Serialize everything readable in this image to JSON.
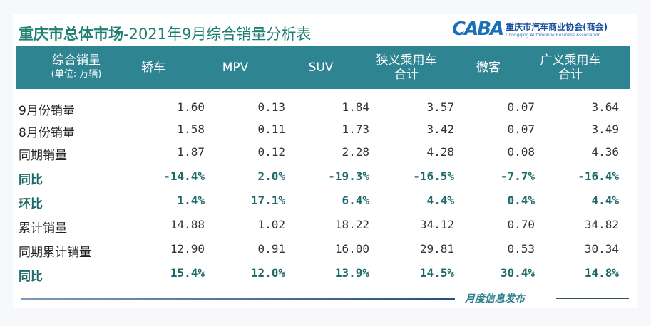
{
  "title": {
    "bold": "重庆市总体市场",
    "rest": "-2021年9月综合销量分析表"
  },
  "logo": {
    "mark": "CABA",
    "cn": "重庆市汽车商业协会(商会)",
    "en": "Chongqing Automobile Business Association"
  },
  "header": {
    "label": "综合销量",
    "unit": "(单位: 万辆)",
    "columns": [
      [
        "轿车"
      ],
      [
        "MPV"
      ],
      [
        "SUV"
      ],
      [
        "狭义乘用车",
        "合计"
      ],
      [
        "微客"
      ],
      [
        "广义乘用车",
        "合计"
      ]
    ]
  },
  "rows": [
    {
      "label": "9月份销量",
      "values": [
        "1.60",
        "0.13",
        "1.84",
        "3.57",
        "0.07",
        "3.64"
      ],
      "highlight": false
    },
    {
      "label": "8月份销量",
      "values": [
        "1.58",
        "0.11",
        "1.73",
        "3.42",
        "0.07",
        "3.49"
      ],
      "highlight": false
    },
    {
      "label": "同期销量",
      "values": [
        "1.87",
        "0.12",
        "2.28",
        "4.28",
        "0.08",
        "4.36"
      ],
      "highlight": false
    },
    {
      "label": "同比",
      "values": [
        "-14.4%",
        "2.0%",
        "-19.3%",
        "-16.5%",
        "-7.7%",
        "-16.4%"
      ],
      "highlight": true
    },
    {
      "label": "环比",
      "values": [
        "1.4%",
        "17.1%",
        "6.4%",
        "4.4%",
        "0.4%",
        "4.4%"
      ],
      "highlight": true
    },
    {
      "label": "累计销量",
      "values": [
        "14.88",
        "1.02",
        "18.22",
        "34.12",
        "0.70",
        "34.82"
      ],
      "highlight": false
    },
    {
      "label": "同期累计销量",
      "values": [
        "12.90",
        "0.91",
        "16.00",
        "29.81",
        "0.53",
        "30.34"
      ],
      "highlight": false
    },
    {
      "label": "同比",
      "values": [
        "15.4%",
        "12.0%",
        "13.9%",
        "14.5%",
        "30.4%",
        "14.8%"
      ],
      "highlight": true
    }
  ],
  "footer": "月度信息发布",
  "colors": {
    "header_bg": "#2f8492",
    "title": "#1d7f72",
    "highlight_text": "#1d6a6a"
  }
}
